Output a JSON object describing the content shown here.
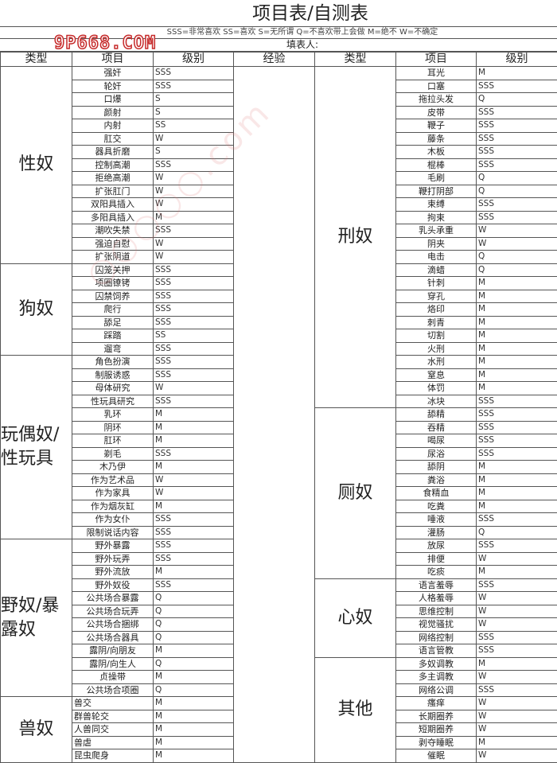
{
  "title": "项目表/自测表",
  "legend": "SSS=非常喜欢 SS=喜欢 S=无所谓 Q=不喜欢带上会做 M=绝不  W=不确定",
  "filler_label": "填表人:",
  "watermark": "9P668.COM",
  "headers": {
    "type": "类型",
    "item": "项目",
    "level": "级别",
    "experience": "经验"
  },
  "left": [
    {
      "category": "性奴",
      "items": [
        [
          "强奸",
          "SSS"
        ],
        [
          "轮奸",
          "SSS"
        ],
        [
          "口爆",
          "S"
        ],
        [
          "颜射",
          "S"
        ],
        [
          "内射",
          "SS"
        ],
        [
          "肛交",
          "W"
        ],
        [
          "器具折磨",
          "S"
        ],
        [
          "控制高潮",
          "SSS"
        ],
        [
          "拒绝高潮",
          "W"
        ],
        [
          "扩张肛门",
          "W"
        ],
        [
          "双阳具插入",
          "W"
        ],
        [
          "多阳具插入",
          "M"
        ],
        [
          "潮吹失禁",
          "SSS"
        ],
        [
          "强迫自慰",
          "W"
        ],
        [
          "扩张阴道",
          "W"
        ]
      ]
    },
    {
      "category": "狗奴",
      "items": [
        [
          "囚笼关押",
          "SSS"
        ],
        [
          "项圈镣铐",
          "SSS"
        ],
        [
          "囚禁饲养",
          "SSS"
        ],
        [
          "爬行",
          "SSS"
        ],
        [
          "舔足",
          "SSS"
        ],
        [
          "踩踏",
          "SS"
        ],
        [
          "遛弯",
          "SSS"
        ]
      ]
    },
    {
      "category": "玩偶奴/性玩具",
      "items": [
        [
          "角色扮演",
          "SSS"
        ],
        [
          "制服诱惑",
          "SSS"
        ],
        [
          "母体研究",
          "W"
        ],
        [
          "性玩具研究",
          "SSS"
        ],
        [
          "乳环",
          "M"
        ],
        [
          "阴环",
          "M"
        ],
        [
          "肛环",
          "M"
        ],
        [
          "剃毛",
          "SSS"
        ],
        [
          "木乃伊",
          "M"
        ],
        [
          "作为艺术品",
          "W"
        ],
        [
          "作为家具",
          "W"
        ],
        [
          "作为烟灰缸",
          "M"
        ],
        [
          "作为女仆",
          "SSS"
        ],
        [
          "限制说话内容",
          "SSS"
        ]
      ]
    },
    {
      "category": "野奴/暴露奴",
      "items": [
        [
          "野外暴露",
          "SSS"
        ],
        [
          "野外玩弄",
          "SSS"
        ],
        [
          "野外流放",
          "M"
        ],
        [
          "野外奴役",
          "SSS"
        ],
        [
          "公共场合暴露",
          "Q"
        ],
        [
          "公共场合玩弄",
          "Q"
        ],
        [
          "公共场合捆绑",
          "Q"
        ],
        [
          "公共场合器具",
          "Q"
        ],
        [
          "露阴/向朋友",
          "M"
        ],
        [
          "露阴/向生人",
          "Q"
        ],
        [
          "贞操带",
          "M"
        ],
        [
          "公共场合项圈",
          "Q"
        ]
      ]
    },
    {
      "category": "兽奴",
      "items": [
        [
          "兽交",
          "M"
        ],
        [
          "群兽轮交",
          "M"
        ],
        [
          "人兽同交",
          "M"
        ],
        [
          "兽虐",
          "M"
        ],
        [
          "昆虫爬身",
          "M"
        ]
      ]
    }
  ],
  "right": [
    {
      "category": "刑奴",
      "items": [
        [
          "耳光",
          "M"
        ],
        [
          "口塞",
          "SSS"
        ],
        [
          "拖拉头发",
          "Q"
        ],
        [
          "皮带",
          "SSS"
        ],
        [
          "鞭子",
          "SSS"
        ],
        [
          "藤条",
          "SSS"
        ],
        [
          "木板",
          "SSS"
        ],
        [
          "棍棒",
          "SSS"
        ],
        [
          "毛刷",
          "Q"
        ],
        [
          "鞭打阴部",
          "Q"
        ],
        [
          "束缚",
          "SSS"
        ],
        [
          "拘束",
          "SSS"
        ],
        [
          "乳头承重",
          "W"
        ],
        [
          "阴夹",
          "W"
        ],
        [
          "电击",
          "Q"
        ],
        [
          "滴蜡",
          "Q"
        ],
        [
          "针刺",
          "M"
        ],
        [
          "穿孔",
          "M"
        ],
        [
          "烙印",
          "M"
        ],
        [
          "刺青",
          "M"
        ],
        [
          "切割",
          "M"
        ],
        [
          "火刑",
          "M"
        ],
        [
          "水刑",
          "M"
        ],
        [
          "窒息",
          "M"
        ],
        [
          "体罚",
          "M"
        ],
        [
          "冰块",
          "SSS"
        ]
      ]
    },
    {
      "category": "厕奴",
      "items": [
        [
          "舔精",
          "SSS"
        ],
        [
          "吞精",
          "SSS"
        ],
        [
          "喝尿",
          "SSS"
        ],
        [
          "尿浴",
          "SSS"
        ],
        [
          "舔阴",
          "M"
        ],
        [
          "粪浴",
          "M"
        ],
        [
          "食精血",
          "M"
        ],
        [
          "吃粪",
          "M"
        ],
        [
          "唾液",
          "SSS"
        ],
        [
          "灌肠",
          "Q"
        ],
        [
          "放尿",
          "SSS"
        ],
        [
          "排便",
          "W"
        ],
        [
          "吃痰",
          "M"
        ]
      ]
    },
    {
      "category": "心奴",
      "items": [
        [
          "语言羞辱",
          "SSS"
        ],
        [
          "人格羞辱",
          "W"
        ],
        [
          "思维控制",
          "W"
        ],
        [
          "视觉骚扰",
          "W"
        ],
        [
          "网络控制",
          "SSS"
        ],
        [
          "语言管教",
          "SSS"
        ]
      ]
    },
    {
      "category": "其他",
      "items": [
        [
          "多奴调教",
          "M"
        ],
        [
          "多主调教",
          "W"
        ],
        [
          "网络公调",
          "SSS"
        ],
        [
          "瘙痒",
          "W"
        ],
        [
          "长期圈养",
          "W"
        ],
        [
          "短期圈养",
          "W"
        ],
        [
          "剥夺睡眠",
          "M"
        ],
        [
          "催眠",
          "W"
        ]
      ]
    }
  ]
}
